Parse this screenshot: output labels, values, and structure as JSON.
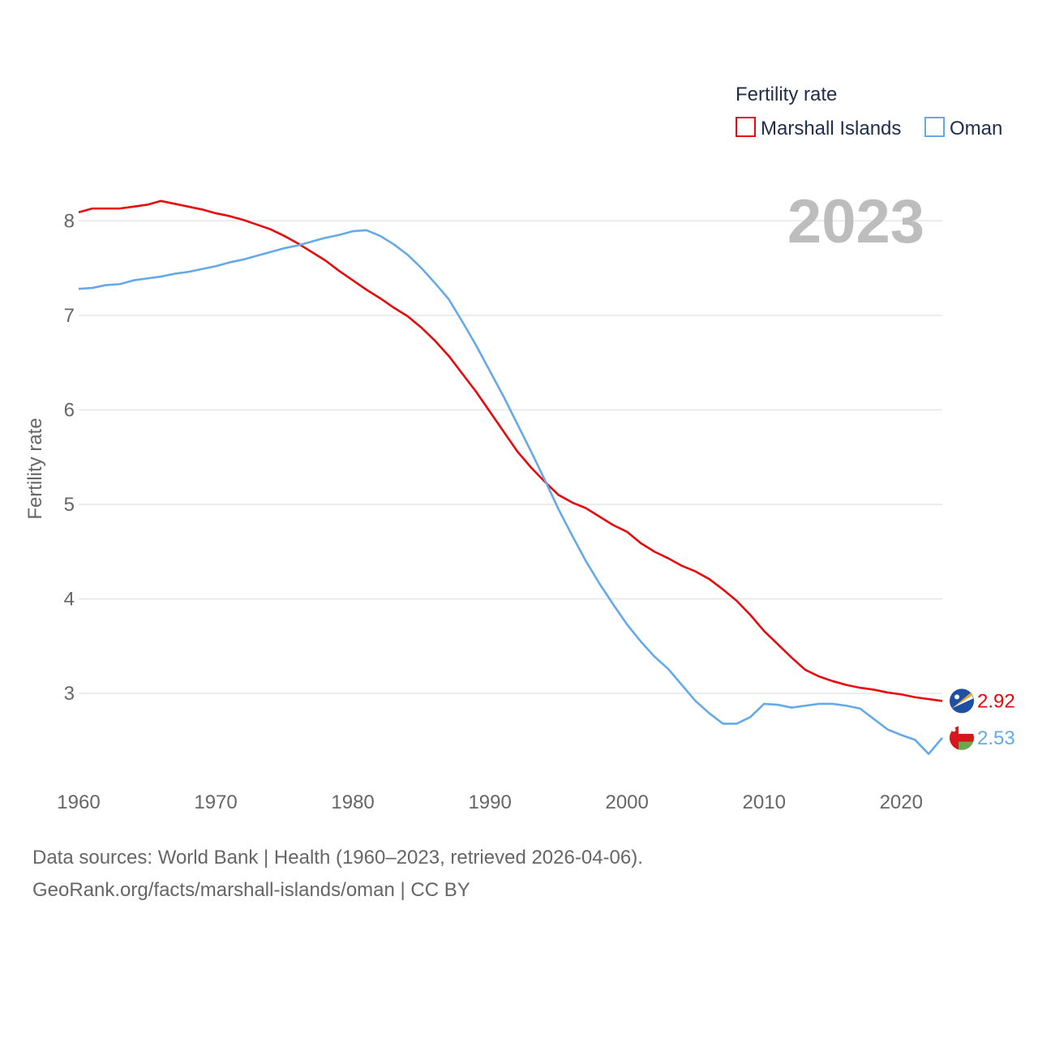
{
  "legend": {
    "title": "Fertility rate",
    "items": [
      {
        "label": "Marshall Islands",
        "color": "#e8090c"
      },
      {
        "label": "Oman",
        "color": "#65a9e8"
      }
    ]
  },
  "year_label": "2023",
  "footer": {
    "line1": "Data sources: World Bank | Health (1960–2023, retrieved 2026-04-06).",
    "line2": "GeoRank.org/facts/marshall-islands/oman | CC BY"
  },
  "chart_data": {
    "type": "line",
    "title": "Fertility rate",
    "xlabel": "",
    "ylabel": "Fertility rate",
    "xlim": [
      1960,
      2023
    ],
    "ylim": [
      2.1,
      8.5
    ],
    "x_ticks": [
      1960,
      1970,
      1980,
      1990,
      2000,
      2010,
      2020
    ],
    "y_ticks": [
      3,
      4,
      5,
      6,
      7,
      8
    ],
    "grid": true,
    "legend_position": "top-right",
    "x": [
      1960,
      1961,
      1962,
      1963,
      1964,
      1965,
      1966,
      1967,
      1968,
      1969,
      1970,
      1971,
      1972,
      1973,
      1974,
      1975,
      1976,
      1977,
      1978,
      1979,
      1980,
      1981,
      1982,
      1983,
      1984,
      1985,
      1986,
      1987,
      1988,
      1989,
      1990,
      1991,
      1992,
      1993,
      1994,
      1995,
      1996,
      1997,
      1998,
      1999,
      2000,
      2001,
      2002,
      2003,
      2004,
      2005,
      2006,
      2007,
      2008,
      2009,
      2010,
      2011,
      2012,
      2013,
      2014,
      2015,
      2016,
      2017,
      2018,
      2019,
      2020,
      2021,
      2022,
      2023
    ],
    "series": [
      {
        "name": "Marshall Islands",
        "color": "#e8090c",
        "end_label": "2.92",
        "values": [
          8.09,
          8.13,
          8.13,
          8.13,
          8.15,
          8.17,
          8.21,
          8.18,
          8.15,
          8.12,
          8.08,
          8.05,
          8.01,
          7.96,
          7.91,
          7.84,
          7.76,
          7.67,
          7.58,
          7.47,
          7.37,
          7.27,
          7.18,
          7.08,
          6.99,
          6.87,
          6.73,
          6.57,
          6.38,
          6.19,
          5.98,
          5.77,
          5.56,
          5.39,
          5.24,
          5.1,
          5.02,
          4.96,
          4.87,
          4.78,
          4.71,
          4.59,
          4.5,
          4.43,
          4.35,
          4.29,
          4.21,
          4.1,
          3.98,
          3.83,
          3.66,
          3.52,
          3.38,
          3.25,
          3.18,
          3.13,
          3.09,
          3.06,
          3.04,
          3.01,
          2.99,
          2.96,
          2.94,
          2.92
        ]
      },
      {
        "name": "Oman",
        "color": "#65a9e8",
        "end_label": "2.53",
        "values": [
          7.28,
          7.29,
          7.32,
          7.33,
          7.37,
          7.39,
          7.41,
          7.44,
          7.46,
          7.49,
          7.52,
          7.56,
          7.59,
          7.63,
          7.67,
          7.71,
          7.74,
          7.78,
          7.82,
          7.85,
          7.89,
          7.9,
          7.84,
          7.75,
          7.64,
          7.5,
          7.34,
          7.17,
          6.93,
          6.68,
          6.41,
          6.14,
          5.85,
          5.56,
          5.26,
          4.95,
          4.67,
          4.4,
          4.16,
          3.94,
          3.73,
          3.55,
          3.39,
          3.26,
          3.09,
          2.92,
          2.79,
          2.68,
          2.68,
          2.75,
          2.89,
          2.88,
          2.85,
          2.87,
          2.89,
          2.89,
          2.87,
          2.84,
          2.73,
          2.62,
          2.56,
          2.51,
          2.36,
          2.53
        ]
      }
    ]
  }
}
